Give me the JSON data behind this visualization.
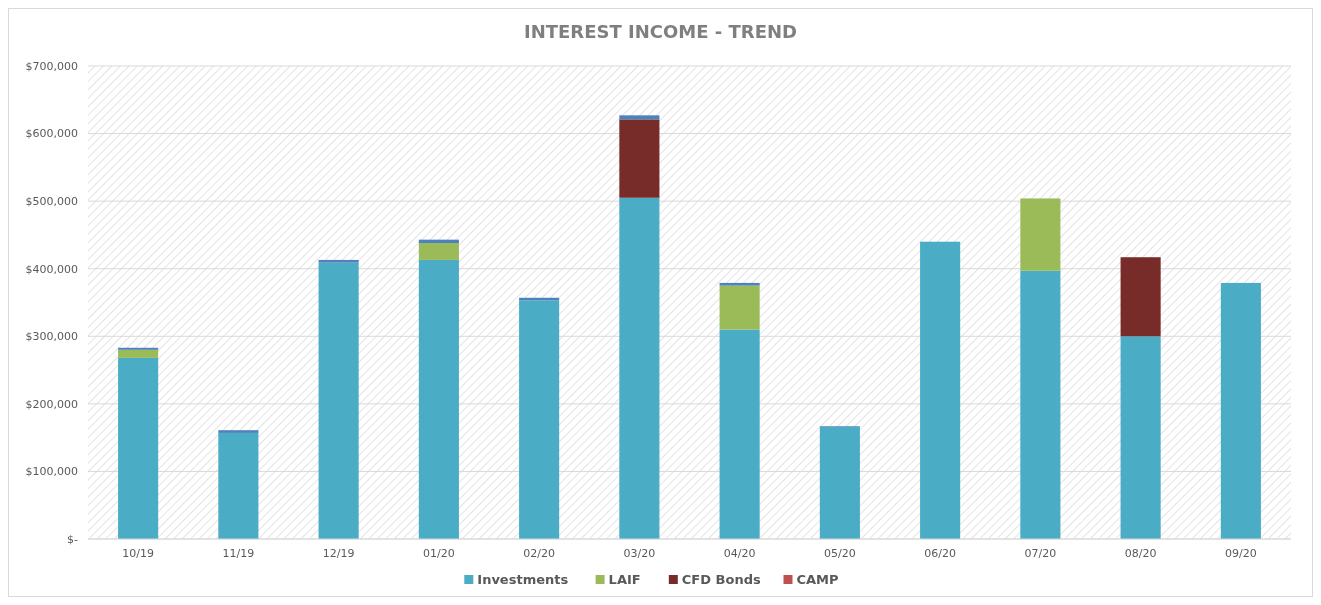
{
  "chart_data": {
    "type": "bar",
    "title": "INTEREST INCOME - TREND",
    "stacked": true,
    "grid": "y",
    "legend": "bottom",
    "categories": [
      "10/19",
      "11/19",
      "12/19",
      "01/20",
      "02/20",
      "03/20",
      "04/20",
      "05/20",
      "06/20",
      "07/20",
      "08/20",
      "09/20"
    ],
    "series": [
      {
        "name": "Investments",
        "color": "#4bacc6",
        "values": [
          268000,
          157000,
          409000,
          413000,
          353000,
          505000,
          310000,
          166000,
          440000,
          397000,
          300000,
          379000
        ]
      },
      {
        "name": "LAIF",
        "color": "#9bbb59",
        "values": [
          12000,
          0,
          0,
          25000,
          0,
          0,
          65000,
          0,
          0,
          107000,
          0,
          0
        ]
      },
      {
        "name": "CFD Bonds",
        "color": "#772c2a",
        "values": [
          0,
          0,
          0,
          0,
          0,
          116000,
          0,
          0,
          0,
          0,
          117000,
          0
        ]
      },
      {
        "color": "#4f81bd",
        "values": [
          3000,
          4000,
          4000,
          5000,
          4000,
          6000,
          4000,
          1000,
          0,
          0,
          0,
          0
        ]
      },
      {
        "name": "CAMP",
        "color": "#c0504d",
        "values": [
          0,
          0,
          0,
          0,
          0,
          0,
          0,
          0,
          0,
          0,
          0,
          0
        ]
      }
    ],
    "ylim": [
      0,
      700000
    ],
    "yticks": [
      {
        "value": 0,
        "label": "$-"
      },
      {
        "value": 100000,
        "label": "$100,000"
      },
      {
        "value": 200000,
        "label": "$200,000"
      },
      {
        "value": 300000,
        "label": "$300,000"
      },
      {
        "value": 400000,
        "label": "$400,000"
      },
      {
        "value": 500000,
        "label": "$500,000"
      },
      {
        "value": 600000,
        "label": "$600,000"
      },
      {
        "value": 700000,
        "label": "$700,000"
      }
    ]
  }
}
